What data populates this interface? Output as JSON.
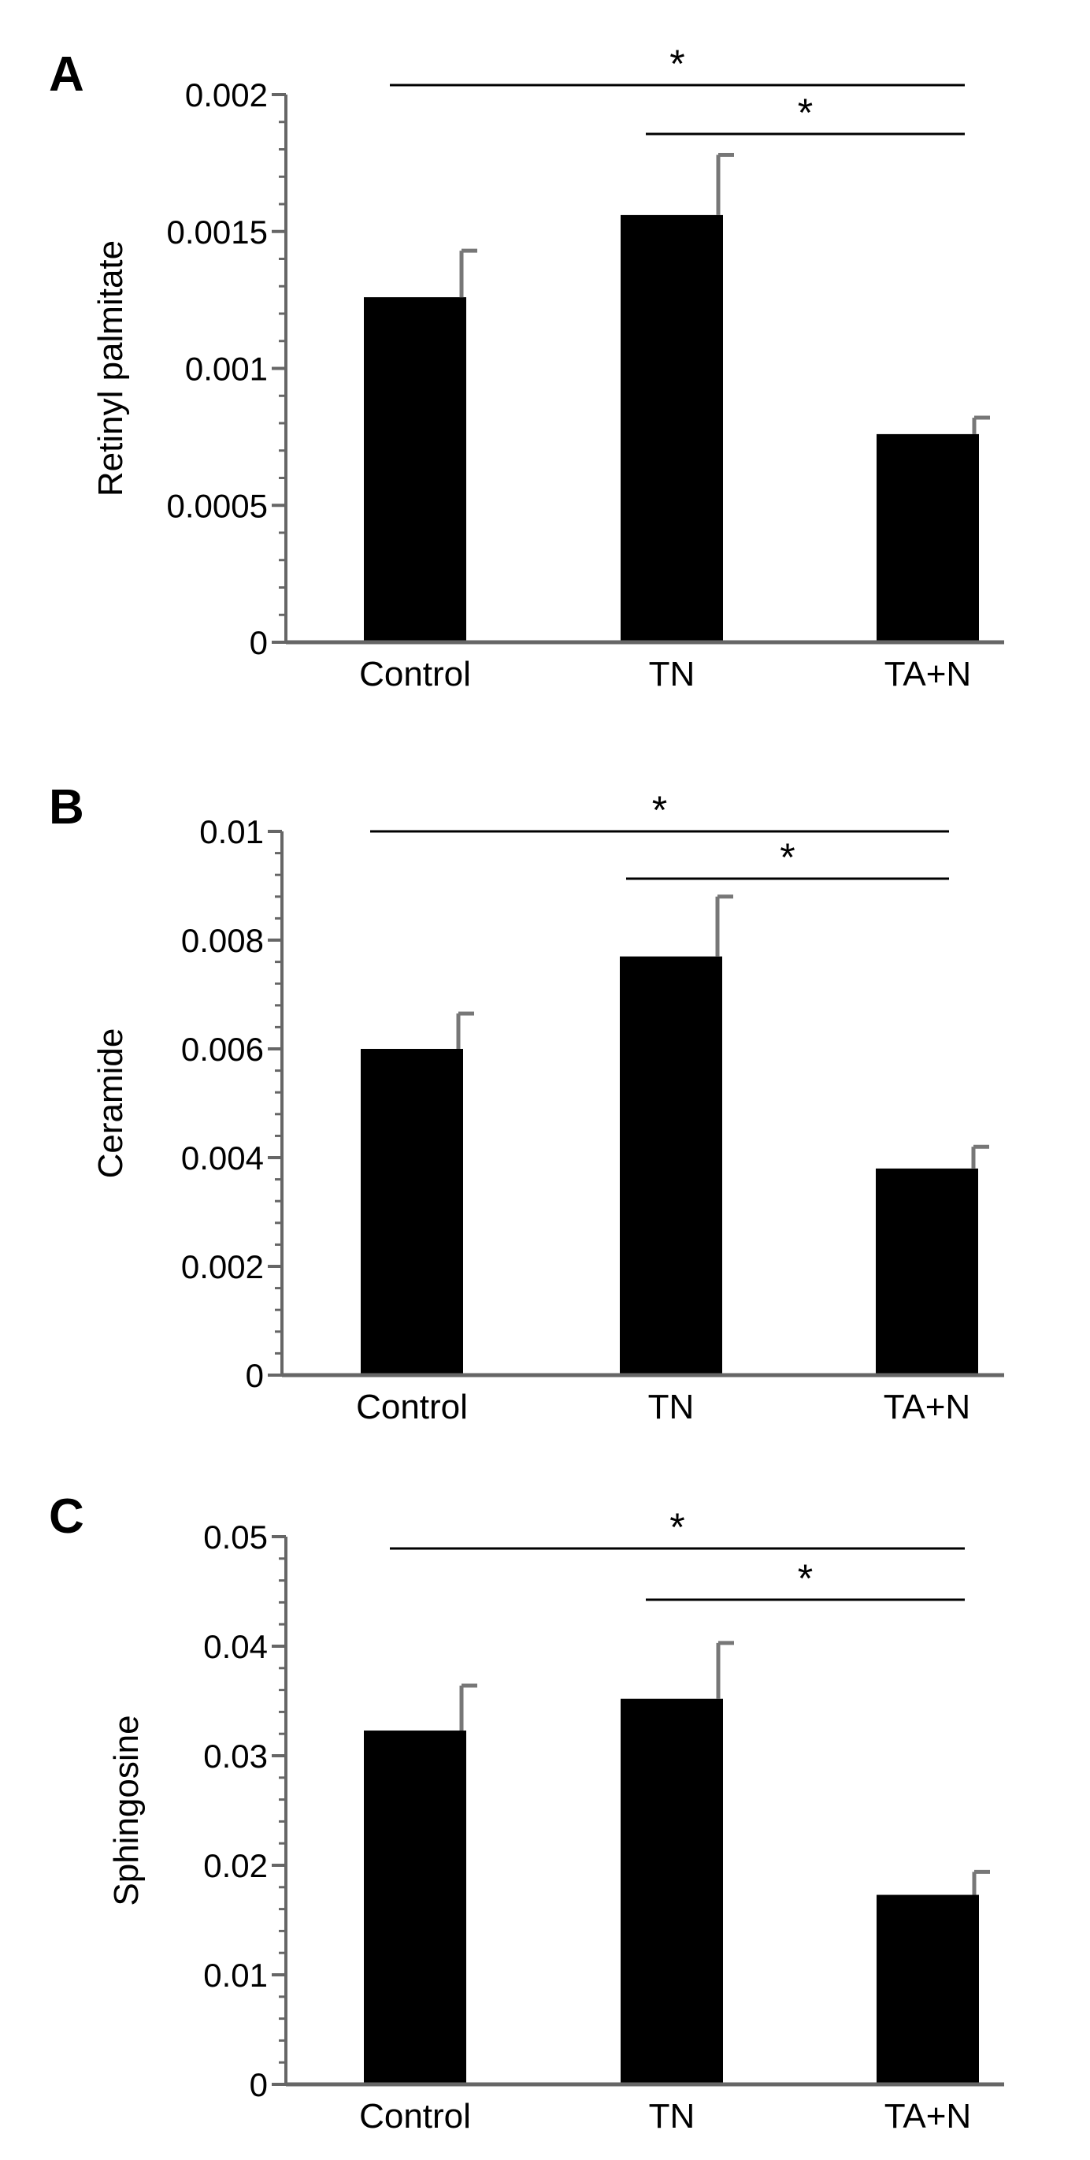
{
  "chart_data": [
    {
      "type": "bar",
      "panel_label": "A",
      "title": "",
      "xlabel": "",
      "ylabel": "Retinyl palmitate",
      "categories": [
        "Control",
        "TN",
        "TA+N"
      ],
      "values": [
        0.00126,
        0.00156,
        0.00076
      ],
      "errors": [
        0.00017,
        0.00022,
        6e-05
      ],
      "ylim": [
        0,
        0.002
      ],
      "yticks": [
        0,
        0.0005,
        0.001,
        0.0015,
        0.002
      ],
      "ytick_labels": [
        "0",
        "0.0005",
        "0.001",
        "0.0015",
        "0.002"
      ],
      "minor_ticks_per_major": 4,
      "significance": [
        {
          "from": 0,
          "to": 2,
          "label": "*"
        },
        {
          "from": 1,
          "to": 2,
          "label": "*"
        }
      ]
    },
    {
      "type": "bar",
      "panel_label": "B",
      "title": "",
      "xlabel": "",
      "ylabel": "Ceramide",
      "categories": [
        "Control",
        "TN",
        "TA+N"
      ],
      "values": [
        0.006,
        0.0077,
        0.0038
      ],
      "errors": [
        0.00065,
        0.0011,
        0.0004
      ],
      "ylim": [
        0,
        0.01
      ],
      "yticks": [
        0,
        0.002,
        0.004,
        0.006,
        0.008,
        0.01
      ],
      "ytick_labels": [
        "0",
        "0.002",
        "0.004",
        "0.006",
        "0.008",
        "0.01"
      ],
      "minor_ticks_per_major": 4,
      "significance": [
        {
          "from": 0,
          "to": 2,
          "label": "*"
        },
        {
          "from": 1,
          "to": 2,
          "label": "*"
        }
      ]
    },
    {
      "type": "bar",
      "panel_label": "C",
      "title": "",
      "xlabel": "",
      "ylabel": "Sphingosine",
      "categories": [
        "Control",
        "TN",
        "TA+N"
      ],
      "values": [
        0.0323,
        0.0352,
        0.0173
      ],
      "errors": [
        0.0041,
        0.0051,
        0.0021
      ],
      "ylim": [
        0,
        0.05
      ],
      "yticks": [
        0,
        0.01,
        0.02,
        0.03,
        0.04,
        0.05
      ],
      "ytick_labels": [
        "0",
        "0.01",
        "0.02",
        "0.03",
        "0.04",
        "0.05"
      ],
      "minor_ticks_per_major": 4,
      "significance": [
        {
          "from": 0,
          "to": 2,
          "label": "*"
        },
        {
          "from": 1,
          "to": 2,
          "label": "*"
        }
      ]
    }
  ]
}
